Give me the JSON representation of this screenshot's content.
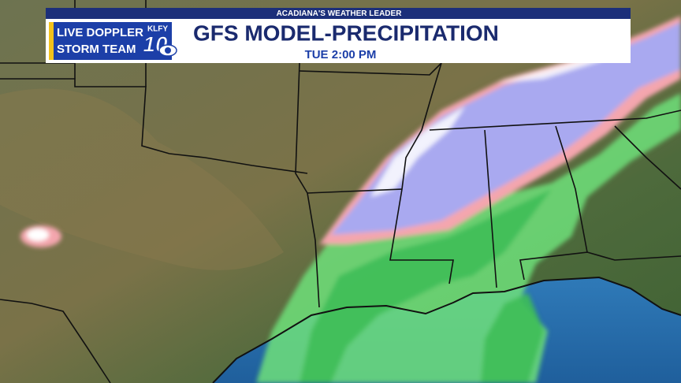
{
  "banner": {
    "tagline": "ACADIANA'S WEATHER LEADER",
    "title": "GFS MODEL-PRECIPITATION",
    "time": "TUE 2:00 PM"
  },
  "logo": {
    "line1": "LIVE DOPPLER",
    "line2": "STORM TEAM",
    "station": "KLFY",
    "channel": "10"
  }
}
